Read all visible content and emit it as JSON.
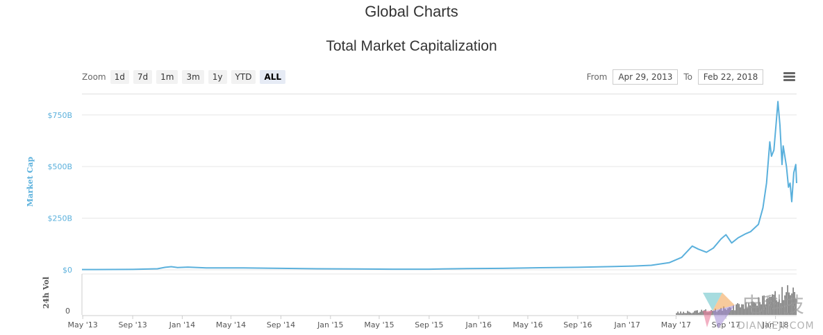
{
  "page": {
    "title": "Global Charts"
  },
  "toolbar": {
    "zoom_label": "Zoom",
    "zoom_buttons": [
      "1d",
      "7d",
      "1m",
      "3m",
      "1y",
      "YTD",
      "ALL"
    ],
    "active_zoom": "ALL",
    "from_label": "From",
    "from_value": "Apr 29, 2013",
    "to_label": "To",
    "to_value": "Feb 22, 2018",
    "menu_icon": "hamburger-menu-icon"
  },
  "watermark": {
    "brand_text": "电科技",
    "domain_text": "DIANKEJI.COM"
  },
  "chart_data": {
    "type": "line",
    "title": "Total Market Capitalization",
    "ylabel": "Market Cap",
    "ylabel2": "24h Vol",
    "yticks": [
      "$0",
      "$250B",
      "$500B",
      "$750B"
    ],
    "vol_yticks": [
      "0"
    ],
    "xticks": [
      "May '13",
      "Sep '13",
      "Jan '14",
      "May '14",
      "Sep '14",
      "Jan '15",
      "May '15",
      "Sep '15",
      "Jan '16",
      "May '16",
      "Sep '16",
      "Jan '17",
      "May '17",
      "Sep '17",
      "Jan '18"
    ],
    "ylim": [
      0,
      850
    ],
    "y_unit": "B",
    "grid": true,
    "line_color": "#5ab0dc",
    "volume_color": "#555555",
    "series": [
      {
        "x": [
          "2013-04-29",
          "2013-06-01",
          "2013-09-01",
          "2013-11-01",
          "2013-11-20",
          "2013-12-05",
          "2013-12-20",
          "2014-01-15",
          "2014-03-01",
          "2014-06-01",
          "2014-09-01",
          "2014-12-01",
          "2015-03-01",
          "2015-06-01",
          "2015-09-01",
          "2015-12-01",
          "2016-03-01",
          "2016-06-01",
          "2016-09-01",
          "2016-12-01",
          "2017-01-15",
          "2017-03-01",
          "2017-04-15",
          "2017-05-15",
          "2017-06-10",
          "2017-06-25",
          "2017-07-15",
          "2017-08-01",
          "2017-08-20",
          "2017-09-01",
          "2017-09-15",
          "2017-10-01",
          "2017-10-20",
          "2017-11-01",
          "2017-11-20",
          "2017-12-01",
          "2017-12-10",
          "2017-12-18",
          "2017-12-22",
          "2017-12-28",
          "2018-01-03",
          "2018-01-07",
          "2018-01-12",
          "2018-01-17",
          "2018-01-20",
          "2018-01-28",
          "2018-02-02",
          "2018-02-06",
          "2018-02-10",
          "2018-02-15",
          "2018-02-20",
          "2018-02-22"
        ],
        "y": [
          1.5,
          1.5,
          2,
          5,
          12,
          15,
          11,
          13,
          9,
          9,
          7,
          5,
          4,
          3,
          3,
          6,
          7,
          10,
          12,
          16,
          18,
          22,
          35,
          60,
          115,
          100,
          85,
          105,
          150,
          170,
          130,
          155,
          175,
          185,
          220,
          300,
          420,
          620,
          550,
          580,
          720,
          815,
          700,
          510,
          600,
          500,
          400,
          420,
          330,
          470,
          510,
          420
        ]
      }
    ]
  }
}
